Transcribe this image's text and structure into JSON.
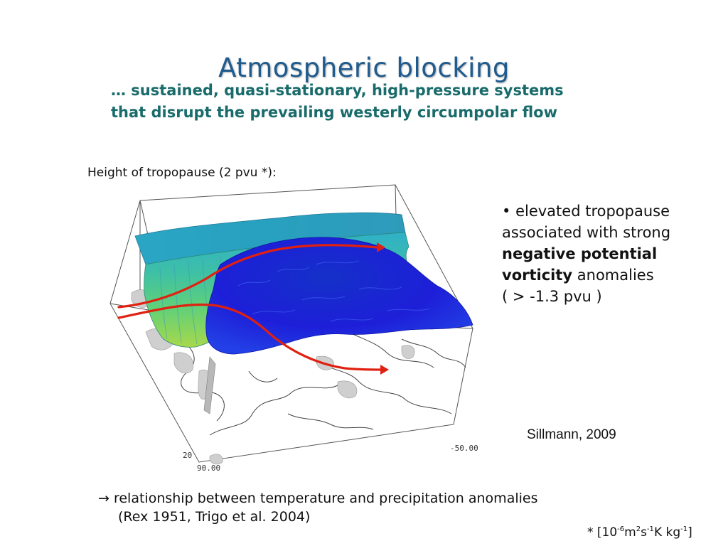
{
  "slide": {
    "title": "Atmospheric blocking",
    "subtitle_line1": "… sustained, quasi-stationary, high-pressure systems",
    "subtitle_line2": "that disrupt the prevailing westerly circumpolar flow"
  },
  "figure": {
    "label": "Height of tropopause (2 pvu *):",
    "axis_label_right": "-50.00",
    "axis_label_left": "90.00",
    "axis_label_small": "20"
  },
  "bullet": {
    "marker": "•",
    "line1": "elevated tropopause",
    "line2": "associated with strong",
    "bold_line3": "negative potential",
    "bold_line4": "vorticity",
    "line4_rest": " anomalies",
    "line5": "( > -1.3 pvu )"
  },
  "citation": "Sillmann, 2009",
  "relationship": {
    "arrow": "→",
    "line1": "relationship between temperature and precipitation anomalies",
    "line2": "(Rex 1951, Trigo et al. 2004)"
  },
  "footnote": {
    "prefix": "* [10",
    "exp1": "-6",
    "part2": "m",
    "exp2": "2",
    "part3": "s",
    "exp3": "-1",
    "part4": "K kg",
    "exp4": "-1",
    "suffix": "]"
  },
  "colors": {
    "title": "#1f5b8e",
    "subtitle": "#1a6b6b",
    "flow_arrows": "#e02010",
    "surface_deep": "#1a1ad6"
  }
}
